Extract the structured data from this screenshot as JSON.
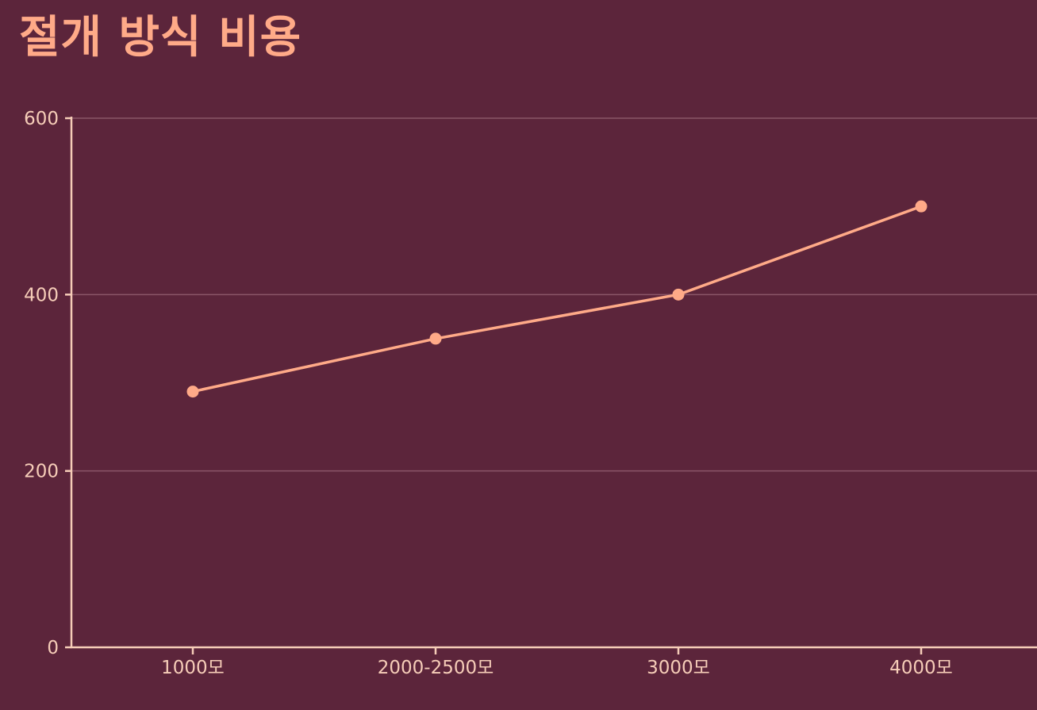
{
  "colors": {
    "background": "#5c253b",
    "title": "#ffaa88",
    "axis": "#f6cdb8",
    "line": "#ffaa88",
    "grid": "#8a5668"
  },
  "chart_data": {
    "type": "line",
    "title": "절개 방식 비용",
    "xlabel": "",
    "ylabel": "",
    "categories": [
      "1000모",
      "2000-2500모",
      "3000모",
      "4000모"
    ],
    "series": [
      {
        "values": [
          290,
          350,
          400,
          500
        ]
      }
    ],
    "ylim": [
      0,
      600
    ],
    "yticks": [
      0,
      200,
      400,
      600
    ],
    "grid": true,
    "legend": "none"
  }
}
